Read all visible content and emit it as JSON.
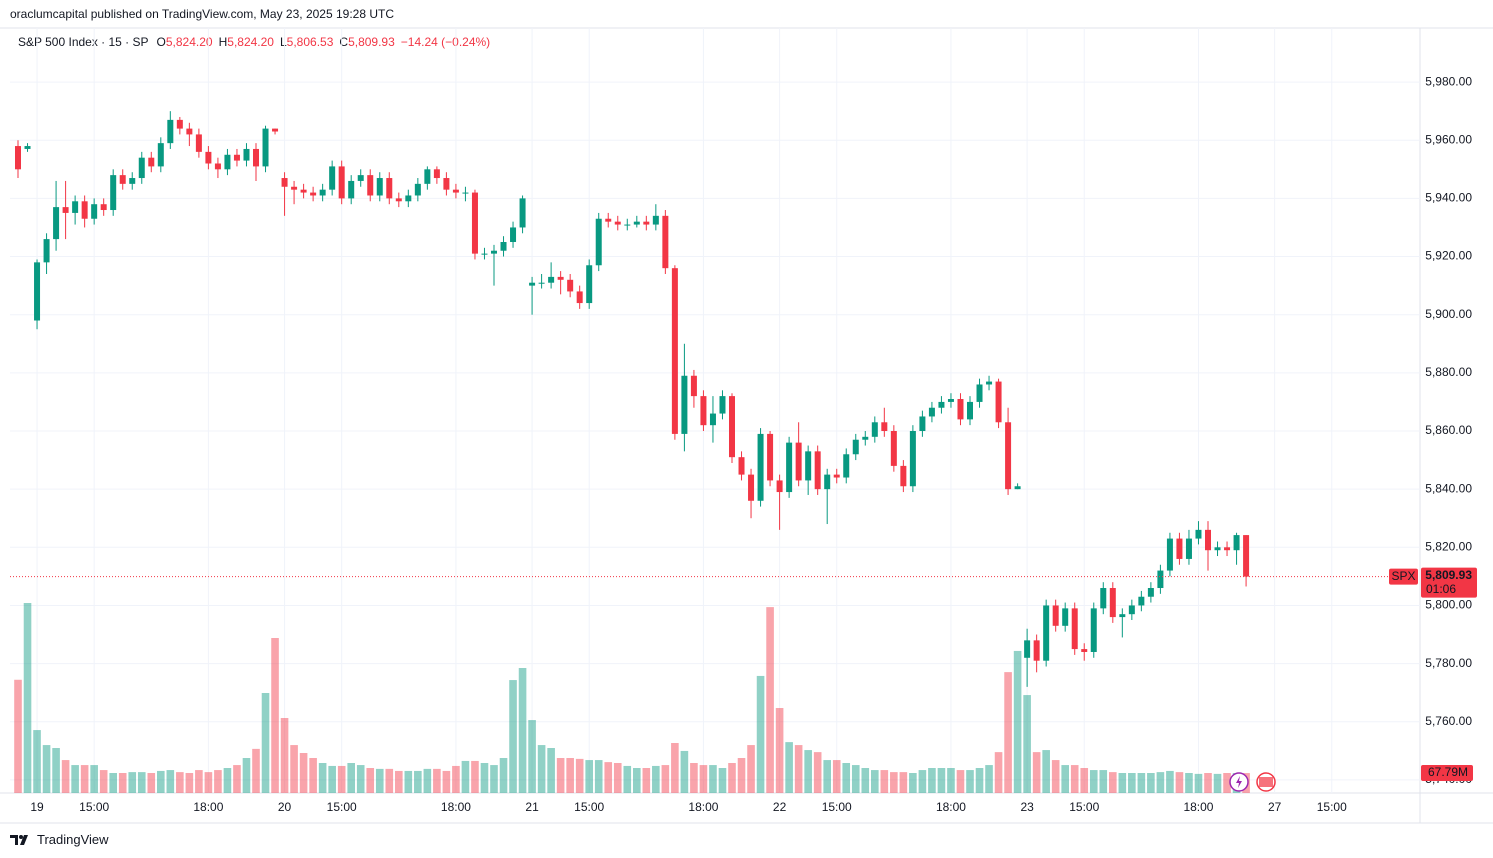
{
  "header": {
    "text": "oraclumcapital published on TradingView.com, May 23, 2025 19:28 UTC"
  },
  "footer": {
    "brand": "TradingView"
  },
  "chart_data": {
    "type": "candlestick",
    "legend": {
      "symbol": "S&P 500 Index · 15 · SP",
      "open_label": "O",
      "open_value": "5,824.20",
      "high_label": "H",
      "high_value": "5,824.20",
      "low_label": "L",
      "low_value": "5,806.53",
      "close_label": "C",
      "close_value": "5,809.93",
      "change": "−14.24 (−0.24%)"
    },
    "up_color": "#089981",
    "down_color": "#f23645",
    "volume_up_color": "rgba(8,153,129,0.45)",
    "volume_down_color": "rgba(242,54,69,0.45)",
    "grid": true,
    "ylim": [
      5735.5,
      5998.6
    ],
    "yticks": [
      {
        "value": 5740,
        "label": "5,740.00"
      },
      {
        "value": 5760,
        "label": "5,760.00"
      },
      {
        "value": 5780,
        "label": "5,780.00"
      },
      {
        "value": 5800,
        "label": "5,800.00"
      },
      {
        "value": 5820,
        "label": "5,820.00"
      },
      {
        "value": 5840,
        "label": "5,840.00"
      },
      {
        "value": 5860,
        "label": "5,860.00"
      },
      {
        "value": 5880,
        "label": "5,880.00"
      },
      {
        "value": 5900,
        "label": "5,900.00"
      },
      {
        "value": 5920,
        "label": "5,920.00"
      },
      {
        "value": 5940,
        "label": "5,940.00"
      },
      {
        "value": 5960,
        "label": "5,960.00"
      },
      {
        "value": 5980,
        "label": "5,980.00"
      }
    ],
    "last_price": {
      "symbol": "SPX",
      "value": 5809.93,
      "label": "5,809.93",
      "countdown": "01:06"
    },
    "volume_last": {
      "value": 67.79,
      "label": "67.79M"
    },
    "categories": [
      null,
      null,
      "19",
      null,
      null,
      null,
      null,
      null,
      "15:00",
      null,
      null,
      null,
      null,
      null,
      null,
      null,
      null,
      null,
      null,
      null,
      "18:00",
      null,
      null,
      null,
      null,
      null,
      null,
      null,
      "20",
      null,
      null,
      null,
      null,
      null,
      "15:00",
      null,
      null,
      null,
      null,
      null,
      null,
      null,
      null,
      null,
      null,
      null,
      "18:00",
      null,
      null,
      null,
      null,
      null,
      null,
      null,
      "21",
      null,
      null,
      null,
      null,
      null,
      "15:00",
      null,
      null,
      null,
      null,
      null,
      null,
      null,
      null,
      null,
      null,
      null,
      "18:00",
      null,
      null,
      null,
      null,
      null,
      null,
      null,
      "22",
      null,
      null,
      null,
      null,
      null,
      "15:00",
      null,
      null,
      null,
      null,
      null,
      null,
      null,
      null,
      null,
      null,
      null,
      "18:00",
      null,
      null,
      null,
      null,
      null,
      null,
      null,
      "23",
      null,
      null,
      null,
      null,
      null,
      "15:00",
      null,
      null,
      null,
      null,
      null,
      null,
      null,
      null,
      null,
      null,
      null,
      "18:00",
      null,
      null,
      null,
      null,
      null,
      null,
      null,
      "27",
      null,
      null,
      null,
      null,
      null,
      "15:00"
    ],
    "open": [
      5958,
      5957,
      5898,
      5918,
      5926,
      5937,
      5935,
      5939,
      5933,
      5938,
      5936,
      5948,
      5945,
      5947,
      5954,
      5951,
      5959,
      5967,
      5964,
      5962,
      5956,
      5952,
      5950,
      5955,
      5953,
      5957,
      5951,
      5964,
      5947,
      5944,
      5943,
      5942,
      5941,
      5943,
      5951,
      5940,
      5946,
      5948,
      5941,
      5947,
      5940,
      5939,
      5941,
      5945,
      5950,
      5947,
      5943,
      5942,
      5942,
      5921,
      5921,
      5922,
      5925,
      5930,
      5910,
      5911,
      5911,
      5913,
      5912,
      5908,
      5904,
      5917,
      5933,
      5932,
      5931,
      5931,
      5932,
      5931,
      5934,
      5916,
      5859,
      5879,
      5872,
      5862,
      5866,
      5872,
      5851,
      5845,
      5836,
      5859,
      5843,
      5839,
      5856,
      5843,
      5853,
      5840,
      5845,
      5844,
      5852,
      5857,
      5858,
      5863,
      5860,
      5848,
      5841,
      5860,
      5865,
      5868,
      5870,
      5871,
      5864,
      5870,
      5876,
      5877,
      5863,
      5840,
      5782,
      5788,
      5781,
      5800,
      5793,
      5799,
      5785,
      5784,
      5799,
      5806,
      5796,
      5797,
      5800,
      5803,
      5806,
      5812,
      5823,
      5816,
      5823,
      5826,
      5819,
      5820,
      5819,
      5824.2,
      null,
      null,
      null,
      null,
      null,
      null,
      null,
      null,
      null
    ],
    "high": [
      5960,
      5959,
      5919,
      5928,
      5946,
      5946,
      5941,
      5941,
      5940,
      5940,
      5950,
      5950,
      5949,
      5956,
      5956,
      5961,
      5970,
      5968,
      5966,
      5964,
      5958,
      5954,
      5957,
      5957,
      5959,
      5959,
      5965,
      5964,
      5949,
      5946,
      5945,
      5944,
      5945,
      5953,
      5953,
      5948,
      5950,
      5950,
      5949,
      5949,
      5942,
      5943,
      5947,
      5951,
      5951,
      5949,
      5945,
      5944,
      5943,
      5923,
      5924,
      5927,
      5932,
      5941,
      5913,
      5914,
      5918,
      5915,
      5914,
      5910,
      5919,
      5935,
      5935,
      5934,
      5933,
      5934,
      5934,
      5938,
      5936,
      5917,
      5890,
      5881,
      5874,
      5872,
      5874,
      5873,
      5853,
      5847,
      5861,
      5860,
      5845,
      5858,
      5863,
      5855,
      5855,
      5847,
      5847,
      5854,
      5859,
      5860,
      5865,
      5868,
      5862,
      5850,
      5862,
      5867,
      5870,
      5872,
      5873,
      5873,
      5872,
      5878,
      5879,
      5878,
      5868,
      5842,
      5792,
      5790,
      5802,
      5802,
      5801,
      5801,
      5787,
      5801,
      5808,
      5808,
      5799,
      5802,
      5805,
      5808,
      5814,
      5825,
      5825,
      5826,
      5829,
      5829,
      5822,
      5822,
      5825,
      5824.2,
      null,
      null,
      null,
      null,
      null,
      null,
      null,
      null,
      null
    ],
    "low": [
      5947,
      5956,
      5895,
      5914,
      5922,
      5926,
      5931,
      5930,
      5931,
      5934,
      5934,
      5943,
      5943,
      5945,
      5949,
      5949,
      5957,
      5962,
      5958,
      5954,
      5950,
      5947,
      5948,
      5951,
      5951,
      5946,
      5949,
      5962,
      5934,
      5938,
      5940,
      5939,
      5939,
      5941,
      5938,
      5938,
      5944,
      5939,
      5939,
      5938,
      5937,
      5937,
      5939,
      5943,
      5945,
      5941,
      5940,
      5939,
      5919,
      5919,
      5910,
      5920,
      5923,
      5928,
      5900,
      5909,
      5909,
      5907,
      5906,
      5902,
      5902,
      5915,
      5930,
      5929,
      5929,
      5930,
      5929,
      5929,
      5914,
      5857,
      5853,
      5868,
      5860,
      5856,
      5864,
      5849,
      5843,
      5830,
      5834,
      5841,
      5826,
      5837,
      5841,
      5838,
      5838,
      5828,
      5842,
      5842,
      5850,
      5855,
      5856,
      5858,
      5846,
      5839,
      5839,
      5858,
      5863,
      5866,
      5868,
      5862,
      5862,
      5868,
      5874,
      5861,
      5838,
      5840,
      5772,
      5777,
      5779,
      5791,
      5791,
      5783,
      5781,
      5782,
      5797,
      5794,
      5789,
      5795,
      5798,
      5801,
      5804,
      5810,
      5814,
      5814,
      5821,
      5812,
      5817,
      5817,
      5814,
      5806.53,
      null,
      null,
      null,
      null,
      null,
      null,
      null,
      null,
      null
    ],
    "close": [
      5950,
      5958,
      5918,
      5926,
      5937,
      5935,
      5939,
      5933,
      5938,
      5936,
      5948,
      5945,
      5947,
      5954,
      5951,
      5959,
      5967,
      5964,
      5962,
      5956,
      5952,
      5950,
      5955,
      5953,
      5957,
      5951,
      5964,
      5963,
      5944,
      5943,
      5942,
      5941,
      5943,
      5951,
      5940,
      5946,
      5948,
      5941,
      5947,
      5940,
      5939,
      5941,
      5945,
      5950,
      5947,
      5943,
      5942,
      5942,
      5921,
      5921,
      5922,
      5925,
      5930,
      5940,
      5911,
      5911,
      5913,
      5912,
      5908,
      5904,
      5917,
      5933,
      5932,
      5931,
      5931,
      5932,
      5931,
      5934,
      5916,
      5859,
      5879,
      5872,
      5862,
      5866,
      5872,
      5851,
      5845,
      5836,
      5859,
      5843,
      5839,
      5856,
      5843,
      5853,
      5840,
      5845,
      5844,
      5852,
      5857,
      5858,
      5863,
      5860,
      5848,
      5841,
      5860,
      5865,
      5868,
      5870,
      5871,
      5864,
      5870,
      5876,
      5877,
      5863,
      5840,
      5841,
      5788,
      5781,
      5800,
      5793,
      5799,
      5785,
      5784,
      5799,
      5806,
      5796,
      5797,
      5800,
      5803,
      5806,
      5812,
      5823,
      5816,
      5823,
      5826,
      5819,
      5820,
      5819,
      5824.2,
      5809.93,
      null,
      null,
      null,
      null,
      null,
      null,
      null,
      null,
      null
    ],
    "volume": [
      385,
      646,
      214,
      163,
      153,
      112,
      95,
      95,
      95,
      78,
      68,
      68,
      71,
      71,
      68,
      75,
      78,
      71,
      68,
      78,
      71,
      78,
      85,
      95,
      119,
      150,
      340,
      527,
      255,
      163,
      136,
      119,
      102,
      92,
      92,
      102,
      95,
      85,
      82,
      82,
      75,
      75,
      75,
      82,
      82,
      75,
      92,
      109,
      109,
      102,
      95,
      119,
      384,
      425,
      248,
      163,
      153,
      119,
      119,
      116,
      112,
      112,
      105,
      102,
      92,
      85,
      85,
      92,
      95,
      170,
      143,
      102,
      95,
      95,
      85,
      102,
      119,
      163,
      398,
      632,
      289,
      173,
      163,
      146,
      139,
      112,
      112,
      102,
      95,
      85,
      78,
      78,
      71,
      71,
      68,
      78,
      85,
      85,
      85,
      78,
      78,
      85,
      95,
      139,
      411,
      483,
      333,
      139,
      146,
      112,
      95,
      95,
      85,
      78,
      78,
      71,
      68,
      68,
      68,
      68,
      71,
      75,
      71,
      68,
      65,
      68,
      65,
      68,
      68,
      67.79,
      null,
      null,
      null,
      null,
      null,
      null,
      null,
      null,
      null
    ]
  }
}
